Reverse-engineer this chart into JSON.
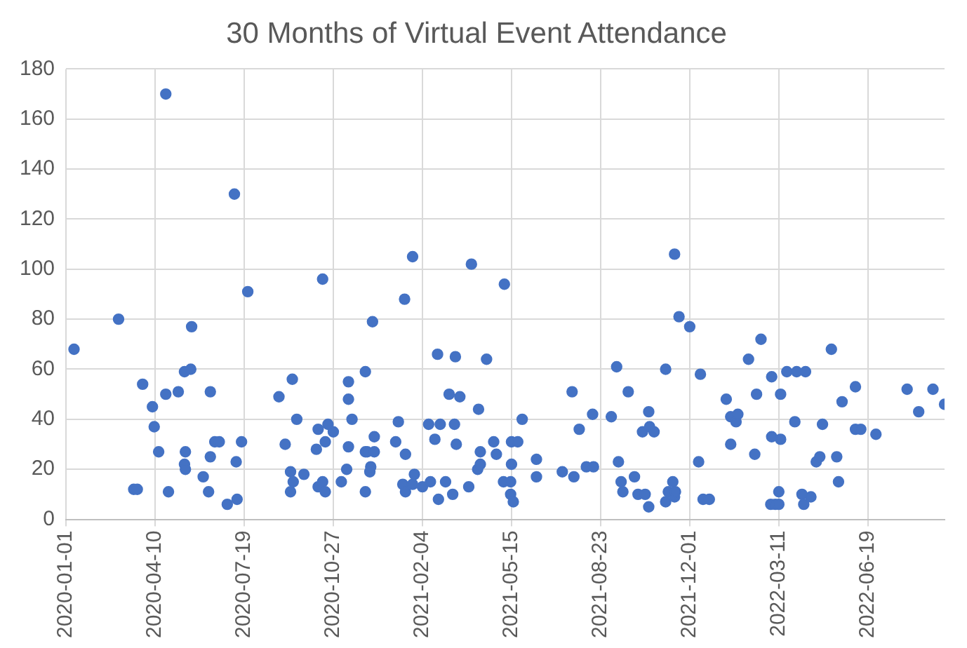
{
  "chart_data": {
    "type": "scatter",
    "title": "30 Months of Virtual Event Attendance",
    "x": [
      "2020-01-10",
      "2020-02-29",
      "2020-03-17",
      "2020-03-21",
      "2020-03-27",
      "2020-04-07",
      "2020-04-09",
      "2020-04-14",
      "2020-04-22",
      "2020-04-22",
      "2020-04-25",
      "2020-05-06",
      "2020-05-13",
      "2020-05-13",
      "2020-05-14",
      "2020-05-14",
      "2020-05-20",
      "2020-05-21",
      "2020-06-03",
      "2020-06-09",
      "2020-06-11",
      "2020-06-11",
      "2020-06-16",
      "2020-06-21",
      "2020-06-30",
      "2020-07-08",
      "2020-07-10",
      "2020-07-11",
      "2020-07-16",
      "2020-07-23",
      "2020-08-27",
      "2020-09-03",
      "2020-09-09",
      "2020-09-09",
      "2020-09-11",
      "2020-09-12",
      "2020-09-16",
      "2020-09-24",
      "2020-10-08",
      "2020-10-10",
      "2020-10-10",
      "2020-10-15",
      "2020-10-15",
      "2020-10-18",
      "2020-10-18",
      "2020-10-21",
      "2020-10-27",
      "2020-11-05",
      "2020-11-11",
      "2020-11-13",
      "2020-11-13",
      "2020-11-13",
      "2020-11-17",
      "2020-12-02",
      "2020-12-02",
      "2020-12-02",
      "2020-12-04",
      "2020-12-07",
      "2020-12-08",
      "2020-12-10",
      "2020-12-12",
      "2020-12-12",
      "2021-01-05",
      "2021-01-08",
      "2021-01-13",
      "2021-01-15",
      "2021-01-16",
      "2021-01-16",
      "2021-01-24",
      "2021-01-24",
      "2021-01-26",
      "2021-02-04",
      "2021-02-11",
      "2021-02-13",
      "2021-02-18",
      "2021-02-21",
      "2021-02-22",
      "2021-02-24",
      "2021-03-02",
      "2021-03-06",
      "2021-03-10",
      "2021-03-12",
      "2021-03-13",
      "2021-03-14",
      "2021-03-18",
      "2021-03-28",
      "2021-03-31",
      "2021-04-07",
      "2021-04-08",
      "2021-04-10",
      "2021-04-10",
      "2021-04-17",
      "2021-04-25",
      "2021-04-28",
      "2021-05-06",
      "2021-05-07",
      "2021-05-14",
      "2021-05-14",
      "2021-05-15",
      "2021-05-15",
      "2021-05-17",
      "2021-05-22",
      "2021-05-27",
      "2021-06-12",
      "2021-06-12",
      "2021-07-11",
      "2021-07-22",
      "2021-07-24",
      "2021-07-30",
      "2021-08-07",
      "2021-08-14",
      "2021-08-15",
      "2021-09-04",
      "2021-09-10",
      "2021-09-12",
      "2021-09-15",
      "2021-09-17",
      "2021-09-23",
      "2021-09-30",
      "2021-10-04",
      "2021-10-09",
      "2021-10-12",
      "2021-10-16",
      "2021-10-16",
      "2021-10-17",
      "2021-10-22",
      "2021-11-04",
      "2021-11-04",
      "2021-11-07",
      "2021-11-12",
      "2021-11-14",
      "2021-11-14",
      "2021-11-15",
      "2021-11-19",
      "2021-12-01",
      "2021-12-11",
      "2021-12-13",
      "2021-12-16",
      "2021-12-23",
      "2022-01-11",
      "2022-01-16",
      "2022-01-16",
      "2022-01-22",
      "2022-01-24",
      "2022-02-05",
      "2022-02-12",
      "2022-02-14",
      "2022-02-19",
      "2022-03-02",
      "2022-03-03",
      "2022-03-03",
      "2022-03-07",
      "2022-03-11",
      "2022-03-11",
      "2022-03-13",
      "2022-03-13",
      "2022-03-20",
      "2022-03-29",
      "2022-03-31",
      "2022-04-06",
      "2022-04-08",
      "2022-04-10",
      "2022-04-16",
      "2022-04-22",
      "2022-04-26",
      "2022-04-29",
      "2022-05-09",
      "2022-05-15",
      "2022-05-17",
      "2022-05-21",
      "2022-06-05",
      "2022-06-05",
      "2022-06-11",
      "2022-06-28",
      "2022-08-02",
      "2022-08-15",
      "2022-08-31",
      "2022-09-13"
    ],
    "values": [
      68,
      80,
      12,
      12,
      54,
      45,
      37,
      27,
      170,
      50,
      11,
      51,
      59,
      22,
      27,
      20,
      60,
      77,
      17,
      11,
      51,
      25,
      31,
      31,
      6,
      130,
      23,
      8,
      31,
      91,
      49,
      30,
      19,
      11,
      56,
      15,
      40,
      18,
      28,
      36,
      13,
      96,
      15,
      31,
      11,
      38,
      35,
      15,
      20,
      29,
      48,
      55,
      40,
      59,
      27,
      11,
      27,
      19,
      21,
      79,
      27,
      33,
      31,
      39,
      14,
      88,
      26,
      11,
      105,
      14,
      18,
      13,
      38,
      15,
      32,
      66,
      8,
      38,
      15,
      50,
      10,
      38,
      65,
      30,
      49,
      13,
      102,
      20,
      44,
      27,
      22,
      64,
      31,
      26,
      15,
      94,
      15,
      10,
      22,
      31,
      7,
      31,
      40,
      24,
      17,
      19,
      51,
      17,
      36,
      21,
      42,
      21,
      41,
      61,
      23,
      15,
      11,
      51,
      17,
      10,
      35,
      10,
      43,
      5,
      37,
      35,
      60,
      7,
      11,
      15,
      106,
      9,
      11,
      81,
      77,
      23,
      58,
      8,
      8,
      48,
      41,
      30,
      39,
      42,
      64,
      26,
      50,
      72,
      6,
      57,
      33,
      6,
      11,
      6,
      50,
      32,
      59,
      39,
      59,
      10,
      6,
      59,
      9,
      23,
      25,
      38,
      68,
      25,
      15,
      47,
      53,
      36,
      36,
      34,
      52,
      43,
      52,
      46
    ],
    "color": "#4472c4",
    "marker": "circle",
    "xlim": [
      "2020-01-01",
      "2022-09-13"
    ],
    "xticks": [
      "2020-01-01",
      "2020-04-10",
      "2020-07-19",
      "2020-10-27",
      "2021-02-04",
      "2021-05-15",
      "2021-08-23",
      "2021-12-01",
      "2022-03-11",
      "2022-06-19"
    ],
    "ylim": [
      0,
      180
    ],
    "yticks": [
      0,
      20,
      40,
      60,
      80,
      100,
      120,
      140,
      160,
      180
    ],
    "grid": true
  }
}
